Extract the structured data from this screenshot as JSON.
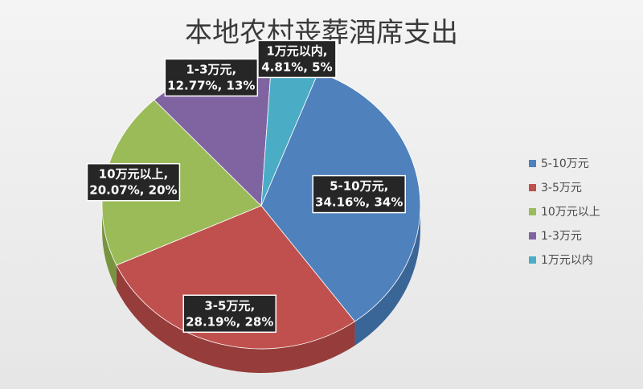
{
  "chart_data": {
    "type": "pie",
    "title": "本地农村丧葬酒席支出",
    "legend_position": "right",
    "slices": [
      {
        "label": "5-10万元",
        "percent_label": "34.16%, 34%",
        "value": 34.16,
        "color": "#4f81bd",
        "side_color": "#3a6597"
      },
      {
        "label": "3-5万元",
        "percent_label": "28.19%, 28%",
        "value": 28.19,
        "color": "#c0504d",
        "side_color": "#963c3a"
      },
      {
        "label": "10万元以上",
        "percent_label": "20.07%, 20%",
        "value": 20.07,
        "color": "#9bbb59",
        "side_color": "#799440"
      },
      {
        "label": "1-3万元",
        "percent_label": "12.77%, 13%",
        "value": 12.77,
        "color": "#8064a2",
        "side_color": "#62497f"
      },
      {
        "label": "1万元以内",
        "percent_label": "4.81%, 5%",
        "value": 4.81,
        "color": "#4bacc6",
        "side_color": "#35869c"
      }
    ]
  }
}
